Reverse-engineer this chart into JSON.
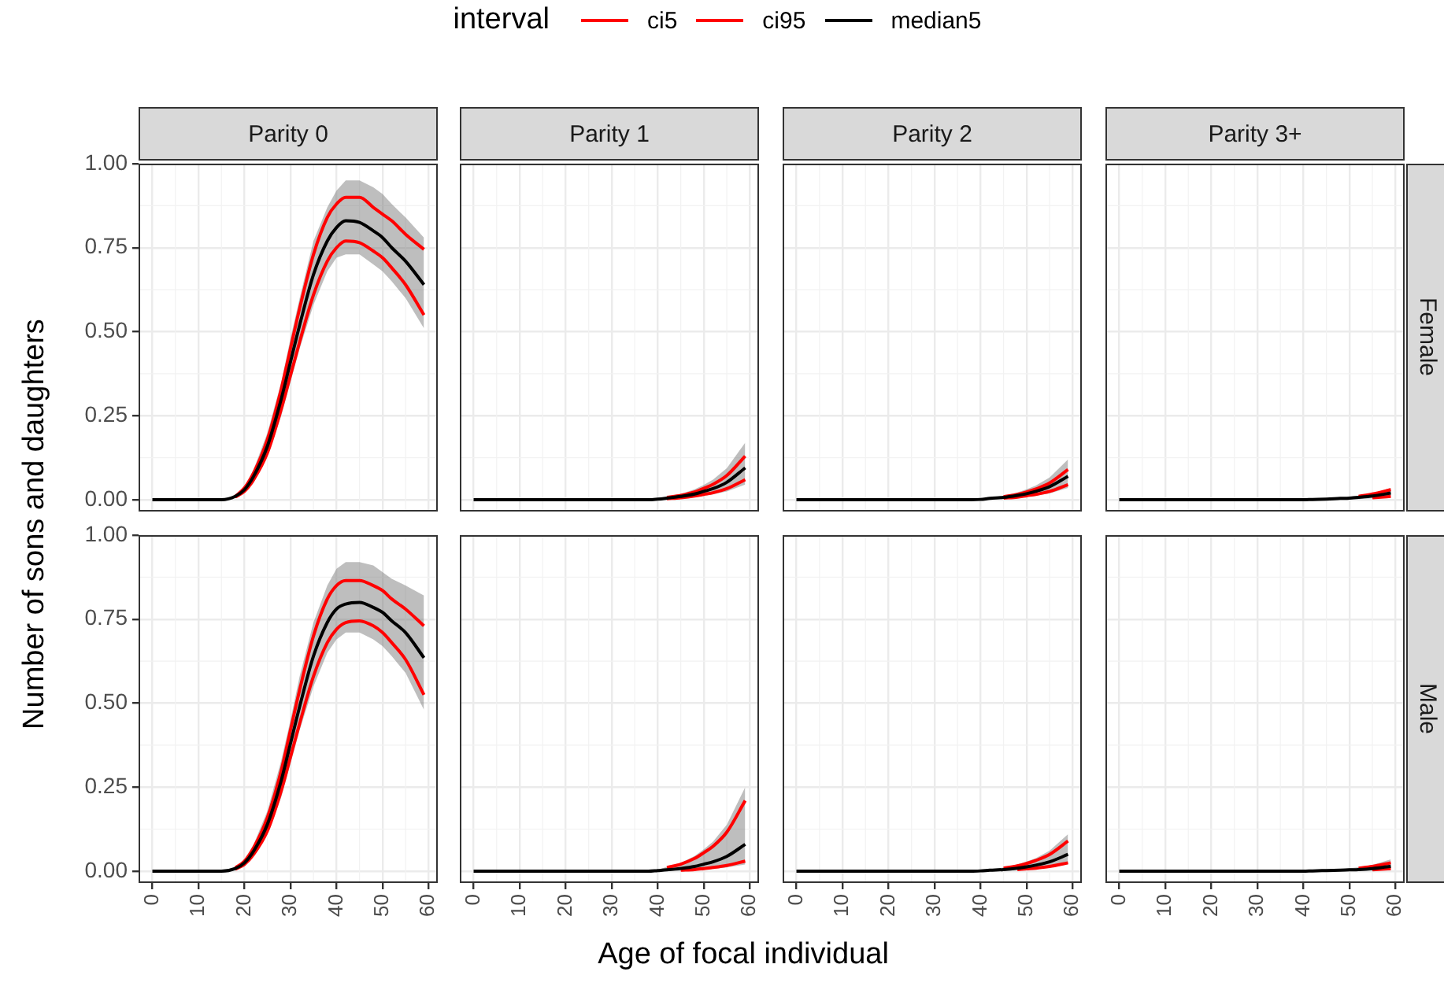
{
  "chart_data": [
    {
      "type": "line",
      "title": "Parity 0",
      "ylabel": "Number of sons and daughters",
      "legend_title": "interval",
      "legend": "top",
      "tick_labels": "y",
      "grid": true,
      "xlim": [
        -3,
        62
      ],
      "xticks": [
        0,
        10,
        20,
        30,
        40,
        50,
        60
      ],
      "ylim": [
        -0.035,
        1.0
      ],
      "yticks": [
        {
          "value": 0,
          "label": "0.00"
        },
        {
          "value": 0.25,
          "label": "0.25"
        },
        {
          "value": 0.5,
          "label": "0.50"
        },
        {
          "value": 0.75,
          "label": "0.75"
        },
        {
          "value": 1,
          "label": "1.00"
        }
      ],
      "x": [
        0,
        5,
        10,
        15,
        18,
        20,
        22,
        25,
        28,
        30,
        32,
        35,
        38,
        40,
        42,
        45,
        48,
        50,
        52,
        55,
        59
      ],
      "series": [
        {
          "name": "ci5",
          "color": "#ff0000",
          "values": [
            null,
            null,
            null,
            null,
            0.008,
            0.025,
            0.06,
            0.14,
            0.27,
            0.37,
            0.47,
            0.61,
            0.71,
            0.75,
            0.77,
            0.765,
            0.74,
            0.72,
            0.69,
            0.64,
            0.55
          ]
        },
        {
          "name": "ci95",
          "color": "#ff0000",
          "values": [
            null,
            null,
            null,
            null,
            0.01,
            0.035,
            0.08,
            0.18,
            0.33,
            0.45,
            0.57,
            0.73,
            0.84,
            0.88,
            0.9,
            0.9,
            0.87,
            0.85,
            0.83,
            0.79,
            0.745
          ]
        },
        {
          "name": "median5",
          "color": "#000000",
          "values": [
            0,
            0,
            0,
            0,
            0.01,
            0.03,
            0.07,
            0.16,
            0.3,
            0.41,
            0.52,
            0.67,
            0.77,
            0.81,
            0.83,
            0.825,
            0.8,
            0.78,
            0.75,
            0.71,
            0.64
          ],
          "lower": [
            0,
            0,
            0,
            0,
            0.006,
            0.02,
            0.05,
            0.13,
            0.25,
            0.35,
            0.45,
            0.58,
            0.68,
            0.72,
            0.73,
            0.73,
            0.7,
            0.68,
            0.65,
            0.6,
            0.51
          ],
          "upper": [
            0,
            0,
            0,
            0,
            0.012,
            0.04,
            0.09,
            0.2,
            0.35,
            0.48,
            0.6,
            0.77,
            0.87,
            0.92,
            0.95,
            0.95,
            0.93,
            0.91,
            0.88,
            0.84,
            0.78
          ]
        }
      ]
    },
    {
      "type": "line",
      "title": "Parity 1",
      "tick_labels": false,
      "grid": true,
      "xlim": [
        -3,
        62
      ],
      "xticks": [
        0,
        10,
        20,
        30,
        40,
        50,
        60
      ],
      "ylim": [
        -0.035,
        1.0
      ],
      "yticks": [
        0,
        0.25,
        0.5,
        0.75,
        1
      ],
      "x": [
        0,
        5,
        10,
        15,
        18,
        20,
        22,
        25,
        28,
        30,
        32,
        35,
        38,
        40,
        42,
        45,
        48,
        50,
        52,
        55,
        59
      ],
      "series": [
        {
          "color": "#ff0000",
          "values": [
            null,
            null,
            null,
            null,
            null,
            null,
            null,
            null,
            null,
            null,
            null,
            null,
            null,
            null,
            0.003,
            0.006,
            0.011,
            0.016,
            0.021,
            0.033,
            0.06
          ]
        },
        {
          "color": "#ff0000",
          "values": [
            null,
            null,
            null,
            null,
            null,
            null,
            null,
            null,
            null,
            null,
            null,
            null,
            null,
            null,
            0.007,
            0.013,
            0.023,
            0.034,
            0.046,
            0.072,
            0.13
          ]
        },
        {
          "color": "#000000",
          "values": [
            0,
            0,
            0,
            0,
            0,
            0,
            0,
            0,
            0,
            0,
            0,
            0,
            0,
            0.002,
            0.005,
            0.01,
            0.017,
            0.025,
            0.033,
            0.052,
            0.095
          ],
          "lower": [
            0,
            0,
            0,
            0,
            0,
            0,
            0,
            0,
            0,
            0,
            0,
            0,
            0,
            0.001,
            0.002,
            0.005,
            0.008,
            0.012,
            0.016,
            0.025,
            0.045
          ],
          "upper": [
            0,
            0,
            0,
            0,
            0,
            0,
            0,
            0,
            0,
            0,
            0,
            0,
            0,
            0.003,
            0.009,
            0.017,
            0.031,
            0.044,
            0.06,
            0.094,
            0.17
          ]
        }
      ]
    },
    {
      "type": "line",
      "title": "Parity 2",
      "tick_labels": false,
      "grid": true,
      "xlim": [
        -3,
        62
      ],
      "xticks": [
        0,
        10,
        20,
        30,
        40,
        50,
        60
      ],
      "ylim": [
        -0.035,
        1.0
      ],
      "yticks": [
        0,
        0.25,
        0.5,
        0.75,
        1
      ],
      "x": [
        0,
        5,
        10,
        15,
        18,
        20,
        22,
        25,
        28,
        30,
        32,
        35,
        38,
        40,
        42,
        45,
        48,
        50,
        52,
        55,
        59
      ],
      "series": [
        {
          "color": "#ff0000",
          "values": [
            null,
            null,
            null,
            null,
            null,
            null,
            null,
            null,
            null,
            null,
            null,
            null,
            null,
            null,
            null,
            0.005,
            0.008,
            0.012,
            0.016,
            0.025,
            0.045
          ]
        },
        {
          "color": "#ff0000",
          "values": [
            null,
            null,
            null,
            null,
            null,
            null,
            null,
            null,
            null,
            null,
            null,
            null,
            null,
            null,
            null,
            0.009,
            0.016,
            0.023,
            0.032,
            0.05,
            0.09
          ]
        },
        {
          "color": "#000000",
          "values": [
            0,
            0,
            0,
            0,
            0,
            0,
            0,
            0,
            0,
            0,
            0,
            0,
            0,
            0.001,
            0.004,
            0.007,
            0.013,
            0.018,
            0.025,
            0.039,
            0.07
          ],
          "lower": [
            0,
            0,
            0,
            0,
            0,
            0,
            0,
            0,
            0,
            0,
            0,
            0,
            0,
            0.001,
            0.002,
            0.004,
            0.006,
            0.009,
            0.012,
            0.019,
            0.035
          ],
          "upper": [
            0,
            0,
            0,
            0,
            0,
            0,
            0,
            0,
            0,
            0,
            0,
            0,
            0,
            0.002,
            0.006,
            0.012,
            0.022,
            0.031,
            0.042,
            0.066,
            0.12
          ]
        }
      ]
    },
    {
      "type": "line",
      "title": "Parity 3+",
      "y2label": "Female",
      "tick_labels": false,
      "grid": true,
      "xlim": [
        -3,
        62
      ],
      "xticks": [
        0,
        10,
        20,
        30,
        40,
        50,
        60
      ],
      "ylim": [
        -0.035,
        1.0
      ],
      "yticks": [
        0,
        0.25,
        0.5,
        0.75,
        1
      ],
      "x": [
        0,
        5,
        10,
        15,
        18,
        20,
        22,
        25,
        28,
        30,
        32,
        35,
        38,
        40,
        42,
        45,
        48,
        50,
        52,
        55,
        59
      ],
      "series": [
        {
          "color": "#ff0000",
          "values": [
            null,
            null,
            null,
            null,
            null,
            null,
            null,
            null,
            null,
            null,
            null,
            null,
            null,
            null,
            null,
            null,
            null,
            null,
            null,
            0.006,
            0.01
          ]
        },
        {
          "color": "#ff0000",
          "values": [
            null,
            null,
            null,
            null,
            null,
            null,
            null,
            null,
            null,
            null,
            null,
            null,
            null,
            null,
            null,
            null,
            null,
            null,
            0.01,
            0.017,
            0.03
          ]
        },
        {
          "color": "#000000",
          "values": [
            0,
            0,
            0,
            0,
            0,
            0,
            0,
            0,
            0,
            0,
            0,
            0,
            0,
            0,
            0.001,
            0.002,
            0.004,
            0.005,
            0.007,
            0.011,
            0.02
          ],
          "lower": [
            0,
            0,
            0,
            0,
            0,
            0,
            0,
            0,
            0,
            0,
            0,
            0,
            0,
            0,
            0,
            0.001,
            0.001,
            0.002,
            0.002,
            0.004,
            0.007
          ],
          "upper": [
            0,
            0,
            0,
            0,
            0,
            0,
            0,
            0,
            0,
            0,
            0,
            0,
            0,
            0.001,
            0.002,
            0.004,
            0.006,
            0.009,
            0.012,
            0.019,
            0.035
          ]
        }
      ]
    },
    {
      "type": "line",
      "grid": true,
      "xlim": [
        -3,
        62
      ],
      "xticks": [
        0,
        10,
        20,
        30,
        40,
        50,
        60
      ],
      "ylim": [
        -0.035,
        1.0
      ],
      "yticks": [
        {
          "value": 0,
          "label": "0.00"
        },
        {
          "value": 0.25,
          "label": "0.25"
        },
        {
          "value": 0.5,
          "label": "0.50"
        },
        {
          "value": 0.75,
          "label": "0.75"
        },
        {
          "value": 1,
          "label": "1.00"
        }
      ],
      "x": [
        0,
        5,
        10,
        15,
        18,
        20,
        22,
        25,
        28,
        30,
        32,
        35,
        38,
        40,
        42,
        45,
        48,
        50,
        52,
        55,
        59
      ],
      "series": [
        {
          "color": "#ff0000",
          "values": [
            null,
            null,
            null,
            null,
            0.006,
            0.02,
            0.05,
            0.12,
            0.24,
            0.34,
            0.44,
            0.58,
            0.68,
            0.72,
            0.74,
            0.745,
            0.73,
            0.71,
            0.68,
            0.63,
            0.525
          ]
        },
        {
          "color": "#ff0000",
          "values": [
            null,
            null,
            null,
            null,
            0.01,
            0.03,
            0.07,
            0.16,
            0.3,
            0.42,
            0.54,
            0.7,
            0.81,
            0.85,
            0.865,
            0.865,
            0.85,
            0.835,
            0.81,
            0.78,
            0.73
          ]
        },
        {
          "color": "#000000",
          "values": [
            0,
            0,
            0,
            0,
            0.008,
            0.025,
            0.06,
            0.14,
            0.27,
            0.38,
            0.49,
            0.64,
            0.74,
            0.78,
            0.795,
            0.8,
            0.785,
            0.77,
            0.745,
            0.71,
            0.635
          ],
          "lower": [
            0,
            0,
            0,
            0,
            0.005,
            0.015,
            0.045,
            0.11,
            0.22,
            0.32,
            0.42,
            0.55,
            0.65,
            0.69,
            0.71,
            0.71,
            0.69,
            0.67,
            0.64,
            0.59,
            0.48
          ],
          "upper": [
            0,
            0,
            0,
            0,
            0.012,
            0.035,
            0.08,
            0.18,
            0.33,
            0.45,
            0.58,
            0.74,
            0.85,
            0.9,
            0.92,
            0.92,
            0.91,
            0.89,
            0.87,
            0.85,
            0.82
          ]
        }
      ]
    },
    {
      "type": "line",
      "xlabel": "Age of focal individual",
      "tick_labels": "x",
      "grid": true,
      "xlim": [
        -3,
        62
      ],
      "xticks": [
        0,
        10,
        20,
        30,
        40,
        50,
        60
      ],
      "ylim": [
        -0.035,
        1.0
      ],
      "yticks": [
        0,
        0.25,
        0.5,
        0.75,
        1
      ],
      "x": [
        0,
        5,
        10,
        15,
        18,
        20,
        22,
        25,
        28,
        30,
        32,
        35,
        38,
        40,
        42,
        45,
        48,
        50,
        52,
        55,
        59
      ],
      "series": [
        {
          "color": "#ff0000",
          "values": [
            null,
            null,
            null,
            null,
            null,
            null,
            null,
            null,
            null,
            null,
            null,
            null,
            null,
            null,
            null,
            0.003,
            0.005,
            0.008,
            0.011,
            0.017,
            0.03
          ]
        },
        {
          "color": "#ff0000",
          "values": [
            null,
            null,
            null,
            null,
            null,
            null,
            null,
            null,
            null,
            null,
            null,
            null,
            null,
            null,
            0.011,
            0.021,
            0.038,
            0.055,
            0.074,
            0.116,
            0.21
          ]
        },
        {
          "color": "#000000",
          "values": [
            0,
            0,
            0,
            0,
            0,
            0,
            0,
            0,
            0,
            0,
            0,
            0,
            0,
            0.002,
            0.004,
            0.008,
            0.014,
            0.021,
            0.028,
            0.044,
            0.08
          ],
          "lower": [
            0,
            0,
            0,
            0,
            0,
            0,
            0,
            0,
            0,
            0,
            0,
            0,
            0,
            0,
            0.001,
            0.002,
            0.004,
            0.005,
            0.007,
            0.011,
            0.02
          ],
          "upper": [
            0,
            0,
            0,
            0,
            0,
            0,
            0,
            0,
            0,
            0,
            0,
            0,
            0,
            0.005,
            0.013,
            0.025,
            0.045,
            0.065,
            0.088,
            0.138,
            0.25
          ]
        }
      ]
    },
    {
      "type": "line",
      "tick_labels": "x",
      "grid": true,
      "xlim": [
        -3,
        62
      ],
      "xticks": [
        0,
        10,
        20,
        30,
        40,
        50,
        60
      ],
      "ylim": [
        -0.035,
        1.0
      ],
      "yticks": [
        0,
        0.25,
        0.5,
        0.75,
        1
      ],
      "x": [
        0,
        5,
        10,
        15,
        18,
        20,
        22,
        25,
        28,
        30,
        32,
        35,
        38,
        40,
        42,
        45,
        48,
        50,
        52,
        55,
        59
      ],
      "series": [
        {
          "color": "#ff0000",
          "values": [
            null,
            null,
            null,
            null,
            null,
            null,
            null,
            null,
            null,
            null,
            null,
            null,
            null,
            null,
            null,
            null,
            0.005,
            0.007,
            0.009,
            0.014,
            0.025
          ]
        },
        {
          "color": "#ff0000",
          "values": [
            null,
            null,
            null,
            null,
            null,
            null,
            null,
            null,
            null,
            null,
            null,
            null,
            null,
            null,
            null,
            0.009,
            0.016,
            0.023,
            0.032,
            0.05,
            0.09
          ]
        },
        {
          "color": "#000000",
          "values": [
            0,
            0,
            0,
            0,
            0,
            0,
            0,
            0,
            0,
            0,
            0,
            0,
            0,
            0.001,
            0.003,
            0.005,
            0.009,
            0.013,
            0.018,
            0.028,
            0.05
          ],
          "lower": [
            0,
            0,
            0,
            0,
            0,
            0,
            0,
            0,
            0,
            0,
            0,
            0,
            0,
            0,
            0.001,
            0.002,
            0.004,
            0.005,
            0.007,
            0.011,
            0.02
          ],
          "upper": [
            0,
            0,
            0,
            0,
            0,
            0,
            0,
            0,
            0,
            0,
            0,
            0,
            0,
            0.002,
            0.006,
            0.011,
            0.02,
            0.029,
            0.039,
            0.061,
            0.11
          ]
        }
      ]
    },
    {
      "type": "line",
      "y2label": "Male",
      "tick_labels": "x",
      "grid": true,
      "xlim": [
        -3,
        62
      ],
      "xticks": [
        0,
        10,
        20,
        30,
        40,
        50,
        60
      ],
      "ylim": [
        -0.035,
        1.0
      ],
      "yticks": [
        0,
        0.25,
        0.5,
        0.75,
        1
      ],
      "x": [
        0,
        5,
        10,
        15,
        18,
        20,
        22,
        25,
        28,
        30,
        32,
        35,
        38,
        40,
        42,
        45,
        48,
        50,
        52,
        55,
        59
      ],
      "series": [
        {
          "color": "#ff0000",
          "values": [
            null,
            null,
            null,
            null,
            null,
            null,
            null,
            null,
            null,
            null,
            null,
            null,
            null,
            null,
            null,
            null,
            null,
            null,
            null,
            0.004,
            0.008
          ]
        },
        {
          "color": "#ff0000",
          "values": [
            null,
            null,
            null,
            null,
            null,
            null,
            null,
            null,
            null,
            null,
            null,
            null,
            null,
            null,
            null,
            null,
            null,
            null,
            0.009,
            0.014,
            0.025
          ]
        },
        {
          "color": "#000000",
          "values": [
            0,
            0,
            0,
            0,
            0,
            0,
            0,
            0,
            0,
            0,
            0,
            0,
            0,
            0,
            0.001,
            0.002,
            0.003,
            0.004,
            0.005,
            0.008,
            0.015
          ],
          "lower": [
            0,
            0,
            0,
            0,
            0,
            0,
            0,
            0,
            0,
            0,
            0,
            0,
            0,
            0,
            0,
            0.001,
            0.001,
            0.001,
            0.002,
            0.003,
            0.005
          ],
          "upper": [
            0,
            0,
            0,
            0,
            0,
            0,
            0,
            0,
            0,
            0,
            0,
            0,
            0,
            0.001,
            0.002,
            0.004,
            0.006,
            0.009,
            0.012,
            0.019,
            0.035
          ]
        }
      ]
    }
  ]
}
